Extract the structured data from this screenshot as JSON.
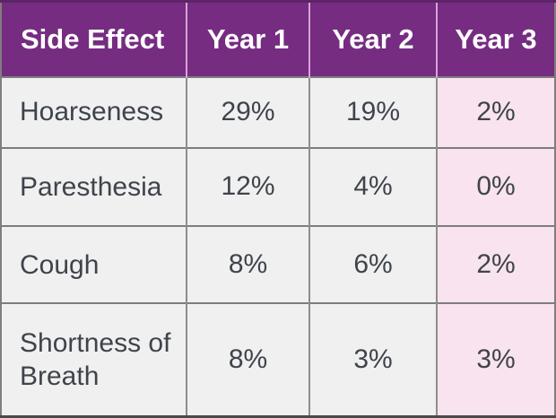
{
  "table": {
    "name": "side-effects-by-year",
    "columns": [
      "Side Effect",
      "Year 1",
      "Year 2",
      "Year 3"
    ],
    "rows": [
      {
        "label": "Hoarseness",
        "values": [
          "29%",
          "19%",
          "2%"
        ]
      },
      {
        "label": "Paresthesia",
        "values": [
          "12%",
          "4%",
          "0%"
        ]
      },
      {
        "label": "Cough",
        "values": [
          "8%",
          "6%",
          "2%"
        ]
      },
      {
        "label": "Shortness of Breath",
        "values": [
          "8%",
          "3%",
          "3%"
        ]
      }
    ],
    "colors": {
      "header_bg": "#752C81",
      "header_text": "#FFFFFF",
      "header_divider": "#D7A4D7",
      "body_bg": "#F1F0F1",
      "highlight_column_bg": "#F9E3EE",
      "body_text": "#3E444B",
      "grid_line": "#8D8D8D",
      "bottom_border": "#4A4A4A"
    },
    "highlight_column": "Year 3"
  }
}
